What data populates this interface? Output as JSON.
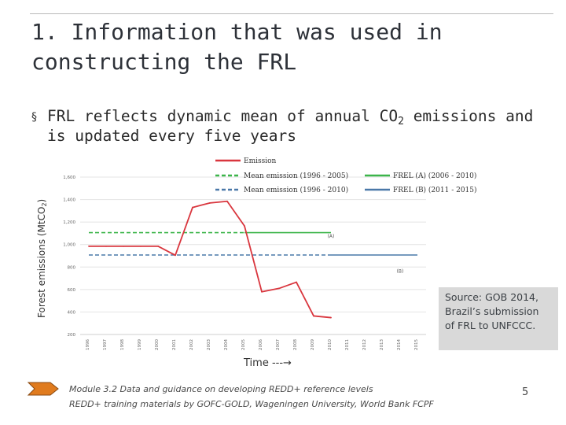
{
  "slide": {
    "title": "1. Information that was used in constructing the FRL",
    "bullet": {
      "marker": "§",
      "text_before": "FRL reflects dynamic mean of annual CO",
      "subscript": "2",
      "text_after": " emissions and is updated every five years"
    },
    "y_caption": {
      "text": "Forest emissions (MtCO",
      "subscript": "2",
      "close": ")"
    },
    "source": {
      "line1": "Source: GOB 2014,",
      "line2": "Brazil’s submission",
      "line3": "of FRL to UNFCCC."
    },
    "time_label": "Time ---→",
    "footer": {
      "line1": "Module 3.2 Data and guidance on developing REDD+ reference levels",
      "line2": "REDD+ training materials by GOFC-GOLD, Wageningen University, World Bank FCPF"
    },
    "page_number": "5"
  },
  "colors": {
    "emission": "#d9363e",
    "mean_1996_2005": "#3cb54a",
    "frel_a": "#3cb54a",
    "mean_1996_2010": "#4a78a8",
    "frel_b": "#4a78a8",
    "grid": "#e4e4e4",
    "footer_arrow": "#e07b1e"
  },
  "chart_data": {
    "type": "line",
    "x": [
      "1996",
      "1997",
      "1998",
      "1999",
      "2000",
      "2001",
      "2002",
      "2003",
      "2004",
      "2005",
      "2006",
      "2007",
      "2008",
      "2009",
      "2010",
      "2011",
      "2012",
      "2013",
      "2014",
      "2015"
    ],
    "y_ticks": [
      "200",
      "400",
      "600",
      "800",
      "1,000",
      "1,200",
      "1,400",
      "1,600"
    ],
    "ylim": [
      200,
      1600
    ],
    "series": [
      {
        "name": "Emission",
        "style": "solid",
        "color_key": "emission",
        "values": [
          985,
          985,
          985,
          985,
          985,
          905,
          1330,
          1370,
          1385,
          1165,
          580,
          610,
          665,
          365,
          350,
          null,
          null,
          null,
          null,
          null
        ]
      },
      {
        "name": "Mean emission (1996 - 2005)",
        "style": "dashed",
        "color_key": "mean_1996_2005",
        "x_range": [
          "1996",
          "2005"
        ],
        "value": 1106
      },
      {
        "name": "Mean emission (1996 - 2010)",
        "style": "dashed",
        "color_key": "mean_1996_2010",
        "x_range": [
          "1996",
          "2010"
        ],
        "value": 907
      },
      {
        "name": "FREL (A) (2006 - 2010)",
        "style": "solid",
        "color_key": "frel_a",
        "x_range": [
          "2005",
          "2010"
        ],
        "value": 1106
      },
      {
        "name": "FREL (B) (2011 - 2015)",
        "style": "solid",
        "color_key": "frel_b",
        "x_range": [
          "2010",
          "2015"
        ],
        "value": 907
      }
    ],
    "annotations": [
      {
        "text": "(A)",
        "x": "2010",
        "y": 1060
      },
      {
        "text": "(B)",
        "x": "2014",
        "y": 750
      }
    ],
    "legend": {
      "placement": "top",
      "left": [
        "Emission",
        "Mean emission (1996 - 2005)",
        "Mean emission (1996 - 2010)"
      ],
      "right": [
        "FREL (A) (2006 - 2010)",
        "FREL (B) (2011 - 2015)"
      ]
    },
    "title": "",
    "xlabel": "Time ---→",
    "ylabel": "Forest emissions (MtCO2)"
  }
}
